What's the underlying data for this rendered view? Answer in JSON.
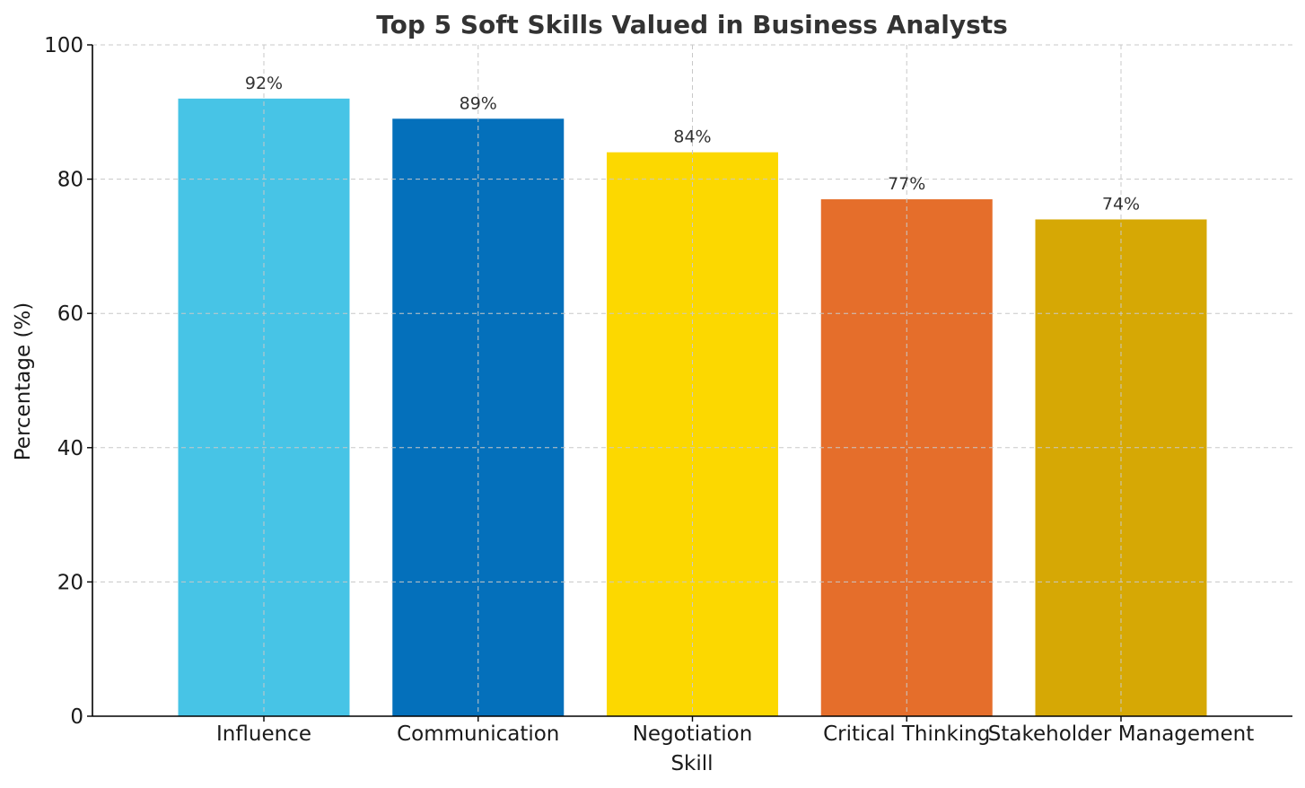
{
  "chart_data": {
    "type": "bar",
    "title": "Top 5 Soft Skills Valued in Business Analysts",
    "xlabel": "Skill",
    "ylabel": "Percentage (%)",
    "categories": [
      "Influence",
      "Communication",
      "Negotiation",
      "Critical Thinking",
      "Stakeholder Management"
    ],
    "values": [
      92,
      89,
      84,
      77,
      74
    ],
    "data_labels": [
      "92%",
      "89%",
      "84%",
      "77%",
      "74%"
    ],
    "colors": [
      "#47c4e6",
      "#0470bb",
      "#fcd800",
      "#e56e2b",
      "#d6a805"
    ],
    "ylim": [
      0,
      100
    ],
    "yticks": [
      0,
      20,
      40,
      60,
      80,
      100
    ],
    "ytick_labels": [
      "0",
      "20",
      "40",
      "60",
      "80",
      "100"
    ],
    "grid": true,
    "legend": "none"
  }
}
